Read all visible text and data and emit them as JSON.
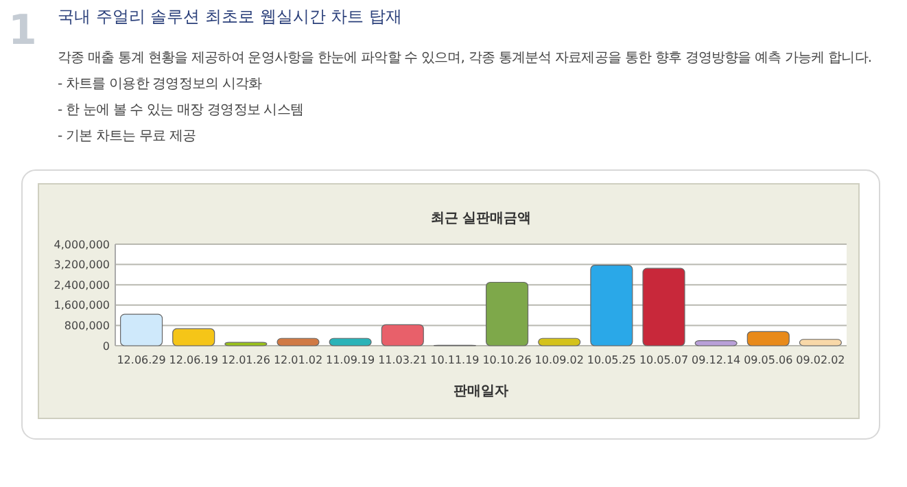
{
  "chart_data": {
    "type": "bar",
    "title": "최근 실판매금액",
    "xlabel": "판매일자",
    "annotations": [
      "1",
      "국내 주얼리 솔루션 최초로 웹실시간 차트 탑재",
      "각종 매출 통계 현황을 제공하여 운영사항을 한눈에 파악할 수 있으며, 각종 통계분석 자료제공을 통한 향후 경영방향을 예측 가능케 합니다.",
      "- 차트를 이용한 경영정보의 시각화",
      "- 한 눈에 볼 수 있는 매장 경영정보 시스템",
      "- 기본 차트는 무료 제공"
    ],
    "categories": [
      "12.06.29",
      "12.06.19",
      "12.01.26",
      "12.01.02",
      "11.09.19",
      "11.03.21",
      "10.11.19",
      "10.10.26",
      "10.09.02",
      "10.05.25",
      "10.05.07",
      "09.12.14",
      "09.05.06",
      "09.02.02"
    ],
    "values": [
      1240000,
      670000,
      130000,
      290000,
      290000,
      830000,
      20000,
      2500000,
      290000,
      3170000,
      3050000,
      200000,
      560000,
      250000
    ],
    "colors": [
      "#cfe9fb",
      "#f5c518",
      "#9ac21a",
      "#d07a45",
      "#2ab3b8",
      "#e8606a",
      "#8b3a8b",
      "#7ea84a",
      "#d4c21a",
      "#2aa8e8",
      "#c8283a",
      "#b9a0d8",
      "#e88a1a",
      "#f8d8a8"
    ],
    "ylim": [
      0,
      4000000
    ],
    "yticks": [
      {
        "value": 0,
        "label": "0"
      },
      {
        "value": 800000,
        "label": "800,000"
      },
      {
        "value": 1600000,
        "label": "1,600,000"
      },
      {
        "value": 2400000,
        "label": "2,400,000"
      },
      {
        "value": 3200000,
        "label": "3,200,000"
      },
      {
        "value": 4000000,
        "label": "4,000,000"
      }
    ],
    "grid": true
  }
}
